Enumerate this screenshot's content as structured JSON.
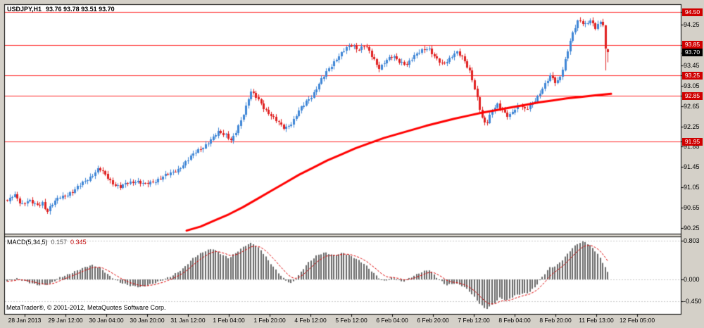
{
  "window": {
    "bg": "#d4d0c8",
    "plot_bg": "#ffffff",
    "frame_color": "#000000"
  },
  "header": {
    "symbol": "USDJPY,H1",
    "ohlc": "93.76 93.78 93.51 93.70"
  },
  "watermark": "MetaTrader®, © 2001-2012, MetaQuotes Software Corp.",
  "price_axis": {
    "ticks": [
      "94.25",
      "93.45",
      "93.05",
      "92.65",
      "92.25",
      "91.85",
      "91.45",
      "91.05",
      "90.65",
      "90.25"
    ],
    "badges": [
      {
        "label": "94.50",
        "type": "level"
      },
      {
        "label": "93.85",
        "type": "level"
      },
      {
        "label": "93.70",
        "type": "current"
      },
      {
        "label": "93.25",
        "type": "level"
      },
      {
        "label": "92.85",
        "type": "level"
      },
      {
        "label": "91.95",
        "type": "level"
      }
    ],
    "level_color": "#d00000",
    "current_color": "#000000"
  },
  "time_axis": {
    "labels": [
      "28 Jan 2013",
      "29 Jan 12:00",
      "30 Jan 04:00",
      "30 Jan 20:00",
      "31 Jan 12:00",
      "1 Feb 04:00",
      "1 Feb 20:00",
      "4 Feb 12:00",
      "5 Feb 12:00",
      "6 Feb 04:00",
      "6 Feb 20:00",
      "7 Feb 12:00",
      "8 Feb 04:00",
      "8 Feb 20:00",
      "11 Feb 13:00",
      "12 Feb 05:00"
    ]
  },
  "macd": {
    "label": "MACD(5,34,5)",
    "main_value": "0.157",
    "signal_value": "0.345",
    "axis_ticks": [
      "0.803",
      "0.000",
      "-0.450"
    ]
  },
  "chart_data": [
    {
      "type": "candlestick",
      "title": "USDJPY,H1",
      "ylim": [
        90.14,
        94.66
      ],
      "levels": [
        94.5,
        93.85,
        93.25,
        92.85,
        91.95
      ],
      "current_price": 93.7,
      "last_ohlc": {
        "open": 93.76,
        "high": 93.78,
        "low": 93.51,
        "close": 93.7
      },
      "up_color": "#3f86d6",
      "down_color": "#e02020",
      "level_line_color": "#ff2a2a",
      "close_path": [
        [
          10,
          90.78
        ],
        [
          20,
          90.9
        ],
        [
          30,
          90.72
        ],
        [
          40,
          90.8
        ],
        [
          52,
          90.68
        ],
        [
          60,
          90.75
        ],
        [
          66,
          90.58
        ],
        [
          74,
          90.72
        ],
        [
          84,
          90.85
        ],
        [
          94,
          90.9
        ],
        [
          104,
          90.98
        ],
        [
          116,
          91.12
        ],
        [
          128,
          91.26
        ],
        [
          140,
          91.42
        ],
        [
          148,
          91.32
        ],
        [
          158,
          91.15
        ],
        [
          170,
          91.05
        ],
        [
          182,
          91.14
        ],
        [
          194,
          91.18
        ],
        [
          206,
          91.1
        ],
        [
          218,
          91.16
        ],
        [
          230,
          91.26
        ],
        [
          242,
          91.32
        ],
        [
          254,
          91.42
        ],
        [
          266,
          91.58
        ],
        [
          278,
          91.76
        ],
        [
          290,
          91.86
        ],
        [
          300,
          91.98
        ],
        [
          310,
          92.15
        ],
        [
          320,
          92.1
        ],
        [
          328,
          91.96
        ],
        [
          336,
          92.15
        ],
        [
          346,
          92.52
        ],
        [
          356,
          92.95
        ],
        [
          364,
          92.82
        ],
        [
          374,
          92.62
        ],
        [
          384,
          92.48
        ],
        [
          394,
          92.33
        ],
        [
          404,
          92.2
        ],
        [
          414,
          92.32
        ],
        [
          424,
          92.55
        ],
        [
          434,
          92.72
        ],
        [
          444,
          92.88
        ],
        [
          454,
          93.12
        ],
        [
          464,
          93.32
        ],
        [
          472,
          93.48
        ],
        [
          480,
          93.62
        ],
        [
          490,
          93.76
        ],
        [
          500,
          93.85
        ],
        [
          508,
          93.76
        ],
        [
          518,
          93.84
        ],
        [
          528,
          93.62
        ],
        [
          538,
          93.4
        ],
        [
          548,
          93.54
        ],
        [
          558,
          93.62
        ],
        [
          568,
          93.53
        ],
        [
          578,
          93.47
        ],
        [
          588,
          93.62
        ],
        [
          598,
          93.76
        ],
        [
          608,
          93.8
        ],
        [
          618,
          93.58
        ],
        [
          628,
          93.48
        ],
        [
          638,
          93.58
        ],
        [
          648,
          93.7
        ],
        [
          658,
          93.58
        ],
        [
          668,
          93.32
        ],
        [
          676,
          92.88
        ],
        [
          684,
          92.42
        ],
        [
          690,
          92.28
        ],
        [
          698,
          92.56
        ],
        [
          706,
          92.68
        ],
        [
          714,
          92.54
        ],
        [
          722,
          92.44
        ],
        [
          730,
          92.6
        ],
        [
          738,
          92.66
        ],
        [
          746,
          92.56
        ],
        [
          754,
          92.68
        ],
        [
          762,
          92.82
        ],
        [
          772,
          93.02
        ],
        [
          782,
          93.26
        ],
        [
          790,
          93.1
        ],
        [
          798,
          93.32
        ],
        [
          806,
          93.72
        ],
        [
          814,
          94.12
        ],
        [
          822,
          94.38
        ],
        [
          830,
          94.24
        ],
        [
          838,
          94.32
        ],
        [
          846,
          94.18
        ],
        [
          852,
          94.33
        ],
        [
          857,
          94.26
        ],
        [
          860,
          94.05
        ],
        [
          862,
          93.74
        ],
        [
          863,
          93.7
        ]
      ],
      "ma": {
        "name": "moving-average",
        "color": "#ff0000",
        "points": [
          [
            265,
            90.2
          ],
          [
            285,
            90.28
          ],
          [
            305,
            90.4
          ],
          [
            325,
            90.52
          ],
          [
            345,
            90.66
          ],
          [
            365,
            90.82
          ],
          [
            385,
            90.98
          ],
          [
            405,
            91.14
          ],
          [
            425,
            91.3
          ],
          [
            445,
            91.44
          ],
          [
            465,
            91.58
          ],
          [
            485,
            91.7
          ],
          [
            505,
            91.82
          ],
          [
            525,
            91.92
          ],
          [
            545,
            92.02
          ],
          [
            565,
            92.1
          ],
          [
            585,
            92.18
          ],
          [
            605,
            92.26
          ],
          [
            625,
            92.33
          ],
          [
            645,
            92.4
          ],
          [
            665,
            92.46
          ],
          [
            685,
            92.52
          ],
          [
            705,
            92.57
          ],
          [
            725,
            92.62
          ],
          [
            745,
            92.67
          ],
          [
            765,
            92.72
          ],
          [
            785,
            92.76
          ],
          [
            805,
            92.8
          ],
          [
            825,
            92.83
          ],
          [
            845,
            92.86
          ],
          [
            868,
            92.89
          ]
        ]
      }
    },
    {
      "type": "bar",
      "name": "MACD(5,34,5)",
      "ylim": [
        -0.72,
        0.88
      ],
      "grid_levels": [
        0.803,
        0,
        -0.45
      ],
      "histogram_color": "#696969",
      "signal_color": "#dd0000",
      "last": {
        "macd": 0.157,
        "signal": 0.345
      },
      "macd_path": [
        [
          10,
          -0.04
        ],
        [
          25,
          0.02
        ],
        [
          40,
          -0.06
        ],
        [
          55,
          -0.12
        ],
        [
          70,
          -0.1
        ],
        [
          85,
          0.04
        ],
        [
          100,
          0.12
        ],
        [
          115,
          0.22
        ],
        [
          130,
          0.3
        ],
        [
          142,
          0.24
        ],
        [
          155,
          0.08
        ],
        [
          170,
          -0.06
        ],
        [
          185,
          -0.13
        ],
        [
          200,
          -0.16
        ],
        [
          215,
          -0.1
        ],
        [
          230,
          -0.02
        ],
        [
          245,
          0.08
        ],
        [
          260,
          0.22
        ],
        [
          275,
          0.45
        ],
        [
          290,
          0.58
        ],
        [
          302,
          0.64
        ],
        [
          315,
          0.52
        ],
        [
          325,
          0.44
        ],
        [
          336,
          0.56
        ],
        [
          348,
          0.7
        ],
        [
          358,
          0.76
        ],
        [
          370,
          0.62
        ],
        [
          382,
          0.38
        ],
        [
          394,
          0.16
        ],
        [
          404,
          0.0
        ],
        [
          414,
          -0.09
        ],
        [
          424,
          0.08
        ],
        [
          436,
          0.32
        ],
        [
          450,
          0.5
        ],
        [
          462,
          0.56
        ],
        [
          474,
          0.5
        ],
        [
          488,
          0.55
        ],
        [
          502,
          0.46
        ],
        [
          516,
          0.34
        ],
        [
          530,
          0.14
        ],
        [
          544,
          -0.04
        ],
        [
          558,
          0.04
        ],
        [
          572,
          -0.05
        ],
        [
          586,
          0.06
        ],
        [
          600,
          0.16
        ],
        [
          610,
          0.2
        ],
        [
          622,
          0.02
        ],
        [
          634,
          -0.12
        ],
        [
          646,
          -0.08
        ],
        [
          658,
          -0.14
        ],
        [
          668,
          -0.26
        ],
        [
          680,
          -0.48
        ],
        [
          690,
          -0.62
        ],
        [
          700,
          -0.52
        ],
        [
          710,
          -0.38
        ],
        [
          720,
          -0.44
        ],
        [
          730,
          -0.34
        ],
        [
          740,
          -0.3
        ],
        [
          750,
          -0.28
        ],
        [
          760,
          -0.16
        ],
        [
          770,
          0.04
        ],
        [
          780,
          0.24
        ],
        [
          790,
          0.28
        ],
        [
          800,
          0.42
        ],
        [
          810,
          0.6
        ],
        [
          820,
          0.74
        ],
        [
          830,
          0.79
        ],
        [
          840,
          0.68
        ],
        [
          848,
          0.55
        ],
        [
          855,
          0.38
        ],
        [
          860,
          0.25
        ],
        [
          863,
          0.157
        ]
      ]
    }
  ]
}
